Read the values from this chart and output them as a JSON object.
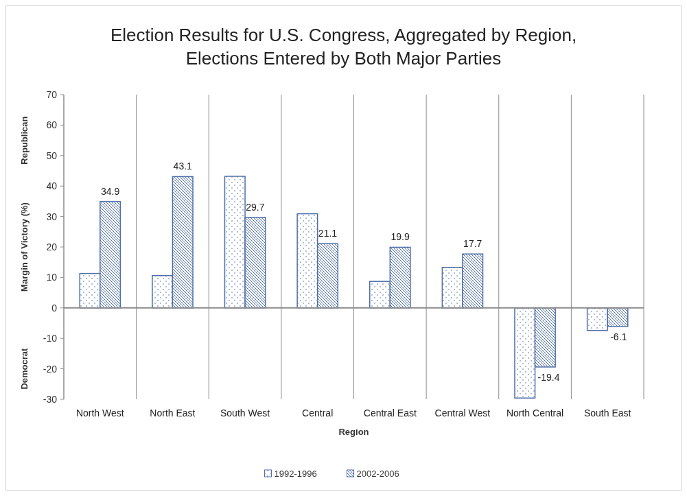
{
  "chart_data": {
    "type": "bar",
    "title": "Election Results for U.S. Congress, Aggregated by Region,\nElections Entered by Both Major Parties",
    "xlabel": "Region",
    "ylabel": "Margin of Victory (%)",
    "annotations": [
      "Republican",
      "Democrat"
    ],
    "categories": [
      "North West",
      "North East",
      "South West",
      "Central",
      "Central East",
      "Central West",
      "North Central",
      "South East"
    ],
    "series": [
      {
        "name": "1992-1996",
        "color": "#4f6fa8",
        "values": [
          11.3,
          10.6,
          43.2,
          30.9,
          8.7,
          13.3,
          -29.6,
          -7.4
        ]
      },
      {
        "name": "2002-2006",
        "color": "#4f6fa8",
        "values": [
          34.9,
          43.1,
          29.7,
          21.1,
          19.9,
          17.7,
          -19.4,
          -6.1
        ],
        "value_labels": [
          "34.9",
          "43.1",
          "29.7",
          "21.1",
          "19.9",
          "17.7",
          "-19.4",
          "-6.1"
        ]
      }
    ],
    "ylim": [
      -30,
      70
    ],
    "yticks": [
      -30,
      -20,
      -10,
      0,
      10,
      20,
      30,
      40,
      50,
      60,
      70
    ],
    "grid": "x",
    "legend": "bottom"
  }
}
